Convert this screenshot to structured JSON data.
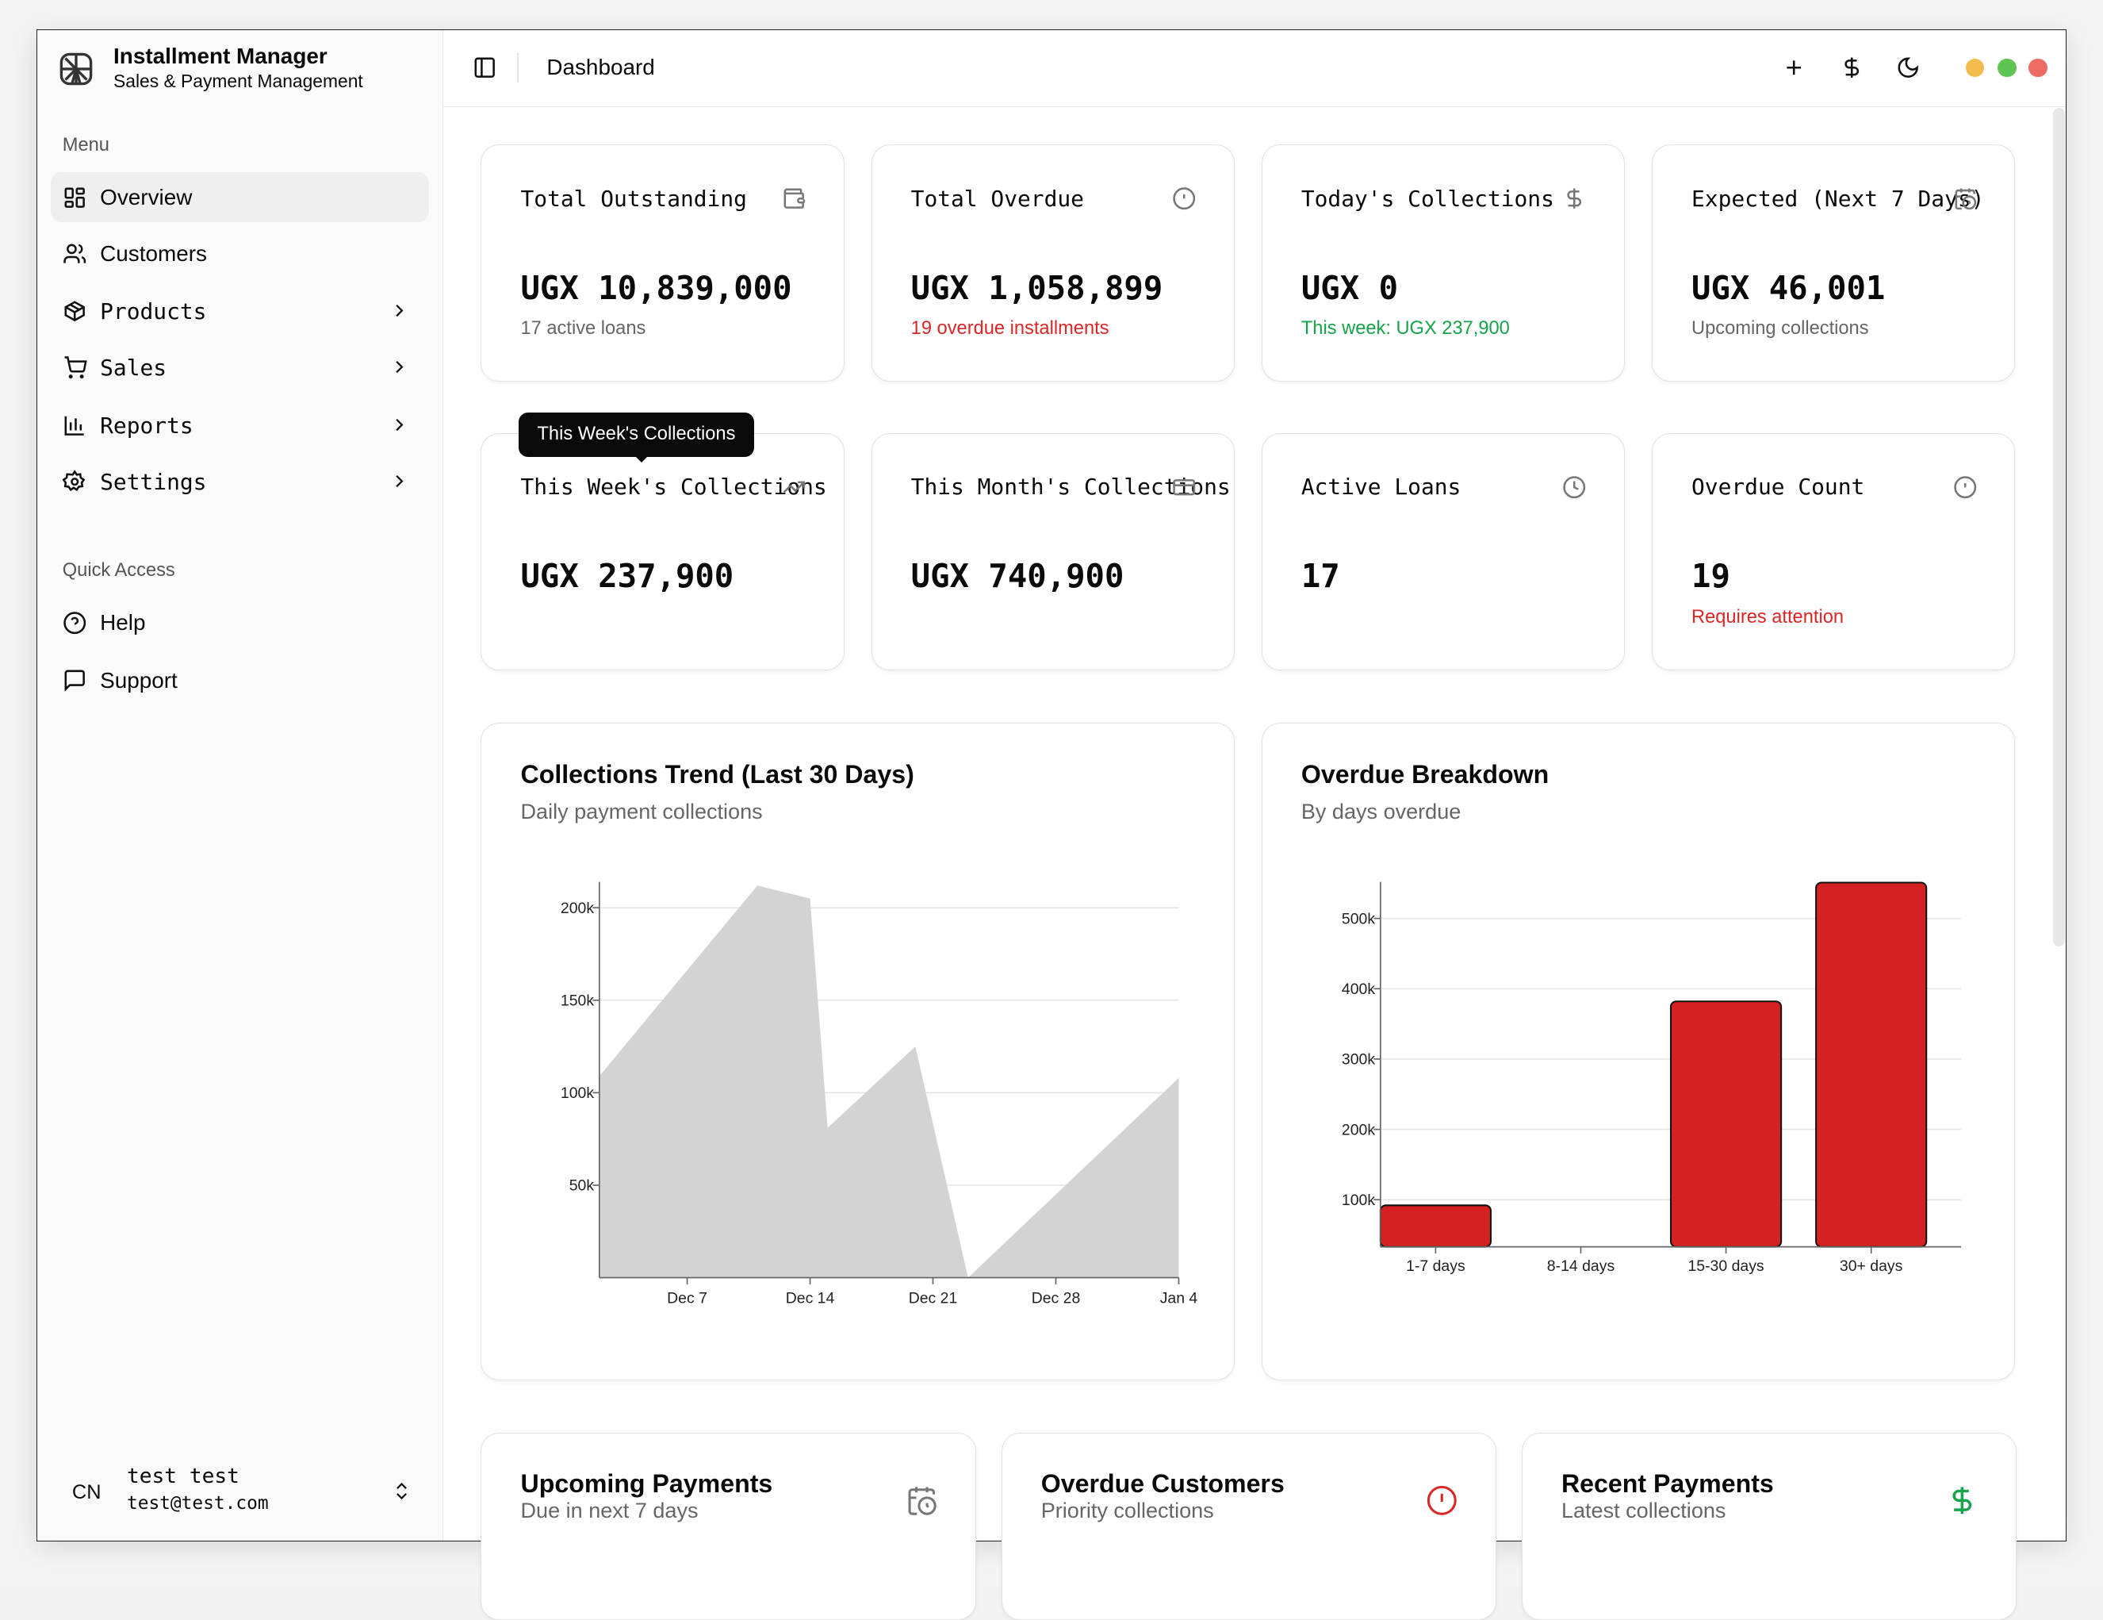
{
  "app": {
    "title": "Installment Manager",
    "subtitle": "Sales & Payment Management"
  },
  "sidebar": {
    "menu_label": "Menu",
    "items": [
      {
        "label": "Overview"
      },
      {
        "label": "Customers"
      },
      {
        "label": "Products"
      },
      {
        "label": "Sales"
      },
      {
        "label": "Reports"
      },
      {
        "label": "Settings"
      }
    ],
    "quick_label": "Quick Access",
    "quick": [
      {
        "label": "Help"
      },
      {
        "label": "Support"
      }
    ],
    "user": {
      "initials": "CN",
      "name": "test test",
      "email": "test@test.com"
    }
  },
  "header": {
    "title": "Dashboard"
  },
  "colors": {
    "accent_red": "#dc2626",
    "accent_green": "#16a34a",
    "bar_red": "#d42222",
    "area_gray": "#d3d3d3"
  },
  "cards": [
    {
      "title": "Total Outstanding",
      "value": "UGX 10,839,000",
      "sub": "17 active loans",
      "icon": "wallet-icon"
    },
    {
      "title": "Total Overdue",
      "value": "UGX 1,058,899",
      "sub": "19 overdue installments",
      "icon": "alert-circle-icon"
    },
    {
      "title": "Today's Collections",
      "value": "UGX 0",
      "sub": "This week: UGX 237,900",
      "icon": "dollar-icon"
    },
    {
      "title": "Expected (Next 7 Days)",
      "value": "UGX 46,001",
      "sub": "Upcoming collections",
      "icon": "calendar-clock-icon"
    },
    {
      "title": "This Week's Collections",
      "value": "UGX 237,900",
      "icon": "trending-up-icon"
    },
    {
      "title": "This Month's Collections",
      "value": "UGX 740,900",
      "icon": "credit-card-icon"
    },
    {
      "title": "Active Loans",
      "value": "17",
      "icon": "clock-icon"
    },
    {
      "title": "Overdue Count",
      "value": "19",
      "sub": "Requires attention",
      "icon": "alert-circle-icon"
    }
  ],
  "tooltip": "This Week's Collections",
  "chart_data": [
    {
      "type": "area",
      "title": "Collections Trend (Last 30 Days)",
      "subtitle": "Daily payment collections",
      "x": [
        "Dec 2",
        "Dec 11",
        "Dec 14",
        "Dec 15",
        "Dec 20",
        "Dec 23",
        "Jan 4"
      ],
      "values": [
        109000,
        212000,
        205000,
        81000,
        125000,
        0,
        108000
      ],
      "xticks": [
        "Dec 7",
        "Dec 14",
        "Dec 21",
        "Dec 28",
        "Jan 4"
      ],
      "yticks": [
        {
          "v": 50000,
          "label": "50k"
        },
        {
          "v": 100000,
          "label": "100k"
        },
        {
          "v": 150000,
          "label": "150k"
        },
        {
          "v": 200000,
          "label": "200k"
        }
      ],
      "ylim": [
        0,
        214000
      ],
      "grid": true
    },
    {
      "type": "bar",
      "title": "Overdue Breakdown",
      "subtitle": "By days overdue",
      "categories": [
        "1-7 days",
        "8-14 days",
        "15-30 days",
        "30+ days"
      ],
      "values": [
        92000,
        0,
        382000,
        551000
      ],
      "yticks": [
        {
          "v": 100000,
          "label": "100k"
        },
        {
          "v": 200000,
          "label": "200k"
        },
        {
          "v": 300000,
          "label": "300k"
        },
        {
          "v": 400000,
          "label": "400k"
        },
        {
          "v": 500000,
          "label": "500k"
        }
      ],
      "ylim": [
        33000,
        552000
      ],
      "grid": true
    }
  ],
  "bottom": [
    {
      "title": "Upcoming Payments",
      "sub": "Due in next 7 days"
    },
    {
      "title": "Overdue Customers",
      "sub": "Priority collections"
    },
    {
      "title": "Recent Payments",
      "sub": "Latest collections"
    }
  ]
}
